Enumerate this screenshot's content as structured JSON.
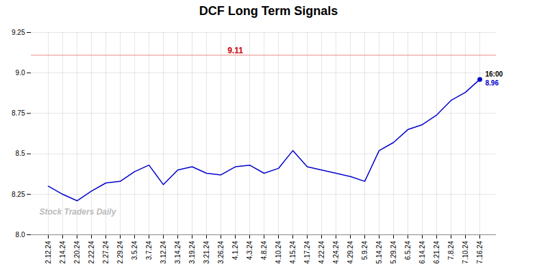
{
  "chart_data": {
    "type": "line",
    "title": "DCF Long Term Signals",
    "categories": [
      "2.12.24",
      "2.14.24",
      "2.20.24",
      "2.22.24",
      "2.27.24",
      "2.29.24",
      "3.5.24",
      "3.7.24",
      "3.12.24",
      "3.14.24",
      "3.19.24",
      "3.21.24",
      "3.26.24",
      "4.1.24",
      "4.3.24",
      "4.8.24",
      "4.10.24",
      "4.15.24",
      "4.17.24",
      "4.22.24",
      "4.24.24",
      "4.29.24",
      "5.9.24",
      "5.14.24",
      "5.29.24",
      "6.5.24",
      "6.14.24",
      "6.21.24",
      "7.8.24",
      "7.10.24",
      "7.16.24"
    ],
    "values": [
      8.3,
      8.25,
      8.21,
      8.27,
      8.32,
      8.33,
      8.39,
      8.43,
      8.31,
      8.4,
      8.42,
      8.38,
      8.37,
      8.42,
      8.43,
      8.38,
      8.41,
      8.52,
      8.42,
      8.4,
      8.38,
      8.36,
      8.33,
      8.52,
      8.57,
      8.65,
      8.68,
      8.74,
      8.83,
      8.88,
      8.96
    ],
    "color": "#0000cc",
    "ylim": [
      8.0,
      9.25
    ],
    "yticks": [
      {
        "value": 8.0,
        "label": "8.0"
      },
      8.25,
      8.5,
      8.75,
      {
        "value": 9.0,
        "label": "9.0"
      },
      9.25
    ],
    "grid": true,
    "reference_line": {
      "value": 9.11,
      "label": "9.11",
      "color": "#f0a0a0",
      "label_color": "#cc0000"
    },
    "end_labels": [
      {
        "text": "16:00",
        "color": "#000000"
      },
      {
        "text": "8.96",
        "color": "#0000cc"
      }
    ],
    "watermark": {
      "text": "Stock Traders Daily",
      "color": "#bbbbbb"
    }
  }
}
